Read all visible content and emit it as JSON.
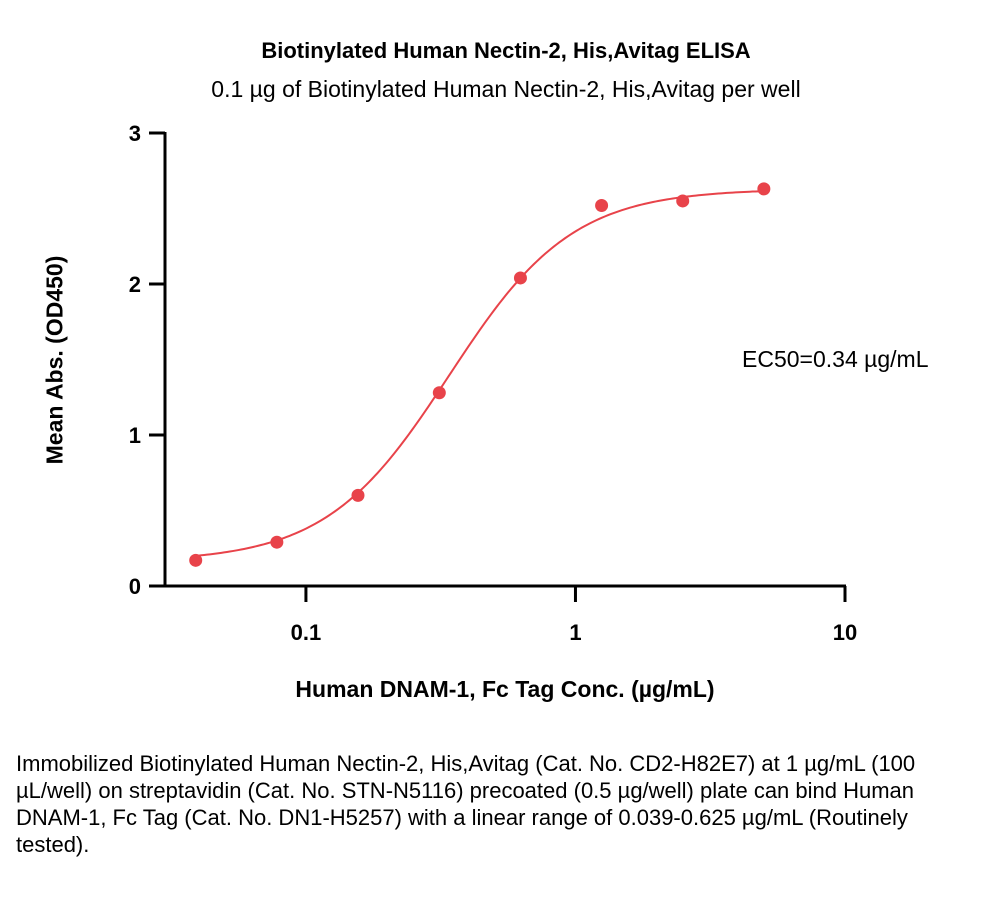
{
  "chart_data": {
    "type": "scatter",
    "title": "Biotinylated Human Nectin-2, His,Avitag ELISA",
    "subtitle": "0.1 µg of Biotinylated Human Nectin-2, His,Avitag per well",
    "xlabel": "Human DNAM-1, Fc Tag Conc. (µg/mL)",
    "ylabel": "Mean Abs. (OD450)",
    "xscale": "log",
    "xlim": [
      0.03,
      10
    ],
    "ylim": [
      0,
      3
    ],
    "xticks": [
      0.1,
      1,
      10
    ],
    "xtick_labels": [
      "0.1",
      "1",
      "10"
    ],
    "yticks": [
      0,
      1,
      2,
      3
    ],
    "ytick_labels": [
      "0",
      "1",
      "2",
      "3"
    ],
    "grid": false,
    "series": [
      {
        "color": "#E8434A",
        "points": [
          {
            "x": 0.039,
            "y": 0.17
          },
          {
            "x": 0.078,
            "y": 0.29
          },
          {
            "x": 0.156,
            "y": 0.6
          },
          {
            "x": 0.3125,
            "y": 1.28
          },
          {
            "x": 0.625,
            "y": 2.04
          },
          {
            "x": 1.25,
            "y": 2.52
          },
          {
            "x": 2.5,
            "y": 2.55
          },
          {
            "x": 5,
            "y": 2.63
          }
        ],
        "fit": {
          "model": "4PL",
          "bottom": 0.16,
          "top": 2.63,
          "ec50": 0.34,
          "hill": 1.9
        }
      }
    ],
    "annotation": "EC50=0.34 µg/mL"
  },
  "caption": "Immobilized Biotinylated Human Nectin-2, His,Avitag (Cat. No. CD2-H82E7) at 1 µg/mL (100 µL/well) on streptavidin (Cat. No. STN-N5116) precoated (0.5 µg/well) plate can bind Human DNAM-1, Fc Tag (Cat. No. DN1-H5257) with a linear range of 0.039-0.625 µg/mL (Routinely tested)."
}
